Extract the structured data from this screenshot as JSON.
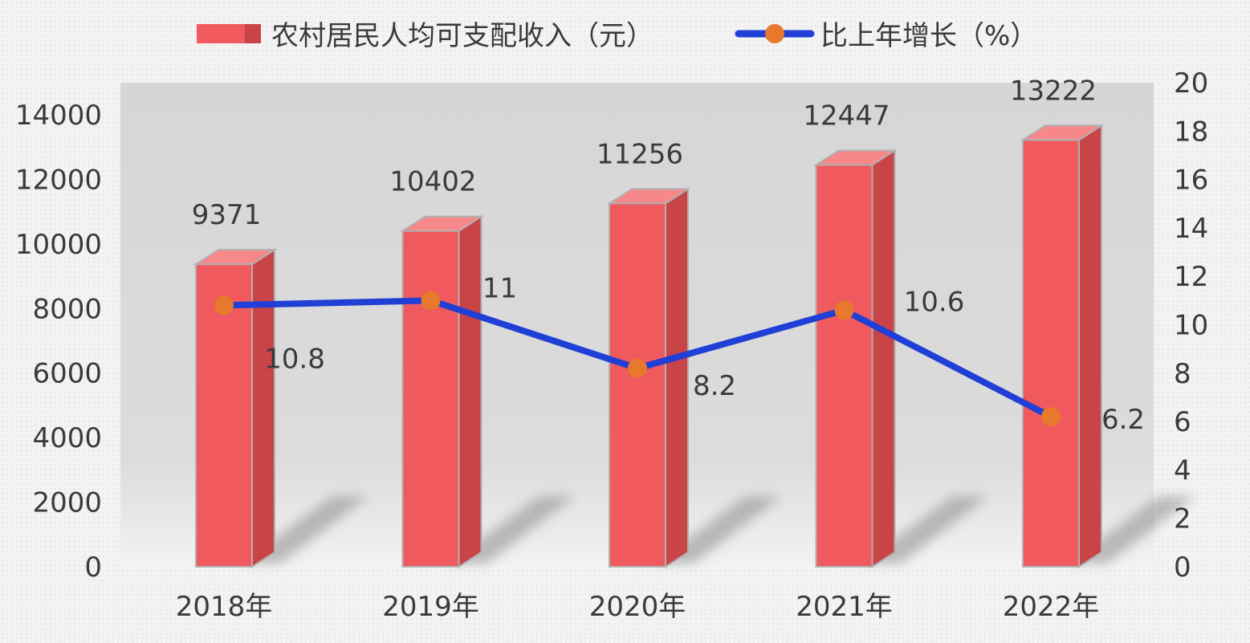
{
  "chart_data": {
    "type": "bar",
    "categories": [
      "2018年",
      "2019年",
      "2020年",
      "2021年",
      "2022年"
    ],
    "series": [
      {
        "name": "农村居民人均可支配收入（元）",
        "type": "bar",
        "axis": "left",
        "values": [
          9371,
          10402,
          11256,
          12447,
          13222
        ],
        "color": "#f05a5e"
      },
      {
        "name": "比上年增长（%）",
        "type": "line",
        "axis": "right",
        "values": [
          10.8,
          11,
          8.2,
          10.6,
          6.2
        ],
        "color": "#1f3fd6",
        "marker_color": "#e8782c"
      }
    ],
    "y_left": {
      "min": 0,
      "max": 14000,
      "ticks": [
        0,
        2000,
        4000,
        6000,
        8000,
        10000,
        12000,
        14000
      ]
    },
    "y_right": {
      "min": 0,
      "max": 20,
      "ticks": [
        0,
        2,
        4,
        6,
        8,
        10,
        12,
        14,
        16,
        18,
        20
      ]
    },
    "legend_position": "top-center",
    "grid": false
  }
}
